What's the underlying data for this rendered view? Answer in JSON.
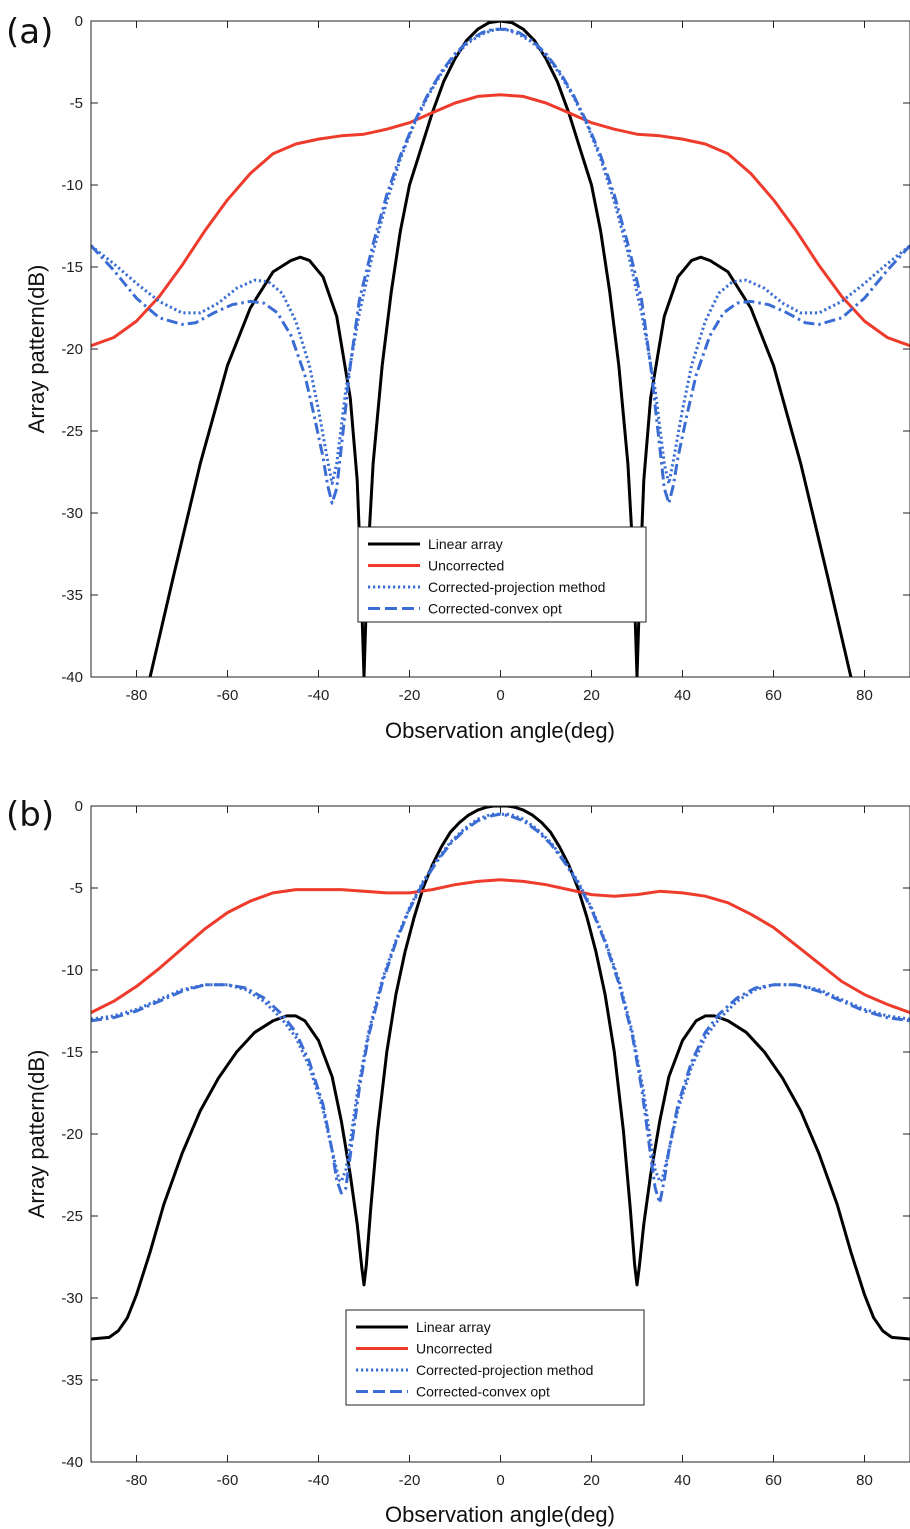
{
  "chart_data": [
    {
      "type": "line",
      "panel_label": "(a)",
      "xlabel": "Observation angle(deg)",
      "ylabel": "Array pattern(dB)",
      "xlim": [
        -90,
        90
      ],
      "ylim": [
        -40,
        0
      ],
      "xticks": [
        -80,
        -60,
        -40,
        -20,
        0,
        20,
        40,
        60,
        80
      ],
      "yticks": [
        0,
        -5,
        -10,
        -15,
        -20,
        -25,
        -30,
        -35,
        -40
      ],
      "grid": false,
      "legend_position": "lower-center",
      "series": [
        {
          "name": "Linear array",
          "color": "#000000",
          "style": "solid",
          "x": [
            -77,
            -72,
            -66,
            -60,
            -55,
            -50,
            -46,
            -44,
            -42,
            -39,
            -36,
            -33,
            -31.5,
            -30.8,
            -30,
            -29.2,
            -28,
            -26,
            -24,
            -22,
            -20,
            -17.5,
            -15,
            -12.5,
            -10,
            -7.5,
            -5,
            -2.5,
            0,
            2.5,
            5,
            7.5,
            10,
            12.5,
            15,
            17.5,
            20,
            22,
            24,
            26,
            28,
            29.2,
            30,
            30.8,
            31.5,
            33,
            36,
            39,
            42,
            44,
            46,
            50,
            55,
            60,
            66,
            72,
            77
          ],
          "y": [
            -40,
            -34,
            -27,
            -21,
            -17.5,
            -15.3,
            -14.6,
            -14.4,
            -14.6,
            -15.6,
            -18,
            -23,
            -28,
            -33,
            -40,
            -33,
            -27,
            -21,
            -16.5,
            -12.8,
            -10,
            -7.8,
            -5.6,
            -3.7,
            -2.3,
            -1.2,
            -0.5,
            -0.1,
            0,
            -0.1,
            -0.5,
            -1.2,
            -2.3,
            -3.7,
            -5.6,
            -7.8,
            -10,
            -12.8,
            -16.5,
            -21,
            -27,
            -33,
            -40,
            -33,
            -28,
            -23,
            -18,
            -15.6,
            -14.6,
            -14.4,
            -14.6,
            -15.3,
            -17.5,
            -21,
            -27,
            -34,
            -40
          ]
        },
        {
          "name": "Uncorrected",
          "color": "#ee3b2b",
          "style": "solid",
          "x": [
            -90,
            -85,
            -80,
            -75,
            -70,
            -65,
            -60,
            -55,
            -50,
            -45,
            -40,
            -35,
            -30,
            -25,
            -20,
            -15,
            -10,
            -5,
            0,
            5,
            10,
            15,
            20,
            25,
            30,
            35,
            40,
            45,
            50,
            55,
            60,
            65,
            70,
            75,
            80,
            85,
            90
          ],
          "y": [
            -19.8,
            -19.3,
            -18.3,
            -16.8,
            -14.9,
            -12.8,
            -10.9,
            -9.3,
            -8.1,
            -7.5,
            -7.2,
            -7.0,
            -6.9,
            -6.6,
            -6.2,
            -5.6,
            -5.0,
            -4.6,
            -4.5,
            -4.6,
            -5.0,
            -5.6,
            -6.2,
            -6.6,
            -6.9,
            -7.0,
            -7.2,
            -7.5,
            -8.1,
            -9.3,
            -10.9,
            -12.8,
            -14.9,
            -16.8,
            -18.3,
            -19.3,
            -19.8
          ]
        },
        {
          "name": "Corrected-projection method",
          "color": "#3a6cd4",
          "style": "dotted",
          "x": [
            -90,
            -85,
            -80,
            -75,
            -70,
            -66,
            -62,
            -58,
            -54,
            -51,
            -48,
            -45,
            -42,
            -40,
            -38,
            -37,
            -36,
            -34,
            -31,
            -28,
            -25,
            -22,
            -19,
            -16,
            -13,
            -10,
            -7,
            -4,
            -1.5,
            0,
            1.5,
            4,
            7,
            10,
            13,
            16,
            19,
            22,
            25,
            28,
            31,
            34,
            36,
            37,
            38,
            40,
            42,
            45,
            48,
            51,
            54,
            58,
            62,
            66,
            70,
            75,
            80,
            85,
            90
          ],
          "y": [
            -13.7,
            -14.8,
            -16,
            -17.1,
            -17.8,
            -17.8,
            -17.2,
            -16.3,
            -15.8,
            -15.9,
            -16.6,
            -18.3,
            -21,
            -23.7,
            -26.8,
            -28.2,
            -27,
            -22.5,
            -17.8,
            -14.1,
            -11,
            -8.4,
            -6.3,
            -4.6,
            -3.2,
            -2.1,
            -1.3,
            -0.8,
            -0.55,
            -0.5,
            -0.55,
            -0.8,
            -1.3,
            -2.1,
            -3.2,
            -4.6,
            -6.3,
            -8.4,
            -11,
            -14.1,
            -17.8,
            -22.5,
            -27,
            -28.2,
            -26.8,
            -23.7,
            -21,
            -18.3,
            -16.6,
            -15.9,
            -15.8,
            -16.3,
            -17.2,
            -17.8,
            -17.8,
            -17.1,
            -16,
            -14.8,
            -13.7
          ]
        },
        {
          "name": "Corrected-convex opt",
          "color": "#3a6cd4",
          "style": "dashdot",
          "x": [
            -90,
            -85,
            -80,
            -75,
            -70,
            -67,
            -63,
            -59,
            -55,
            -52,
            -49,
            -46,
            -43,
            -41,
            -39,
            -38,
            -37,
            -36,
            -35,
            -33,
            -31,
            -28,
            -25,
            -22,
            -19,
            -16,
            -13,
            -10,
            -7,
            -4,
            -1.5,
            0,
            1.5,
            4,
            7,
            10,
            13,
            16,
            19,
            22,
            25,
            28,
            31,
            33,
            35,
            36,
            37,
            38,
            39,
            41,
            43,
            46,
            49,
            52,
            55,
            59,
            63,
            67,
            70,
            75,
            80,
            85,
            90
          ],
          "y": [
            -13.7,
            -15.2,
            -16.9,
            -18.1,
            -18.5,
            -18.4,
            -17.8,
            -17.3,
            -17.1,
            -17.2,
            -17.8,
            -19.2,
            -21.6,
            -24,
            -26.6,
            -28.3,
            -29.4,
            -28.5,
            -26,
            -21,
            -17,
            -13.6,
            -10.6,
            -8.2,
            -6.2,
            -4.5,
            -3.1,
            -2.0,
            -1.2,
            -0.7,
            -0.5,
            -0.5,
            -0.5,
            -0.7,
            -1.2,
            -2.0,
            -3.1,
            -4.5,
            -6.2,
            -8.2,
            -10.6,
            -13.6,
            -17,
            -21,
            -26,
            -28.5,
            -29.4,
            -28.3,
            -26.6,
            -24,
            -21.6,
            -19.2,
            -17.8,
            -17.2,
            -17.1,
            -17.3,
            -17.8,
            -18.4,
            -18.5,
            -18.1,
            -16.9,
            -15.2,
            -13.7
          ]
        }
      ]
    },
    {
      "type": "line",
      "panel_label": "(b)",
      "xlabel": "Observation angle(deg)",
      "ylabel": "Array pattern(dB)",
      "xlim": [
        -90,
        90
      ],
      "ylim": [
        -40,
        0
      ],
      "xticks": [
        -80,
        -60,
        -40,
        -20,
        0,
        20,
        40,
        60,
        80
      ],
      "yticks": [
        0,
        -5,
        -10,
        -15,
        -20,
        -25,
        -30,
        -35,
        -40
      ],
      "grid": false,
      "legend_position": "lower-center",
      "series": [
        {
          "name": "Linear array",
          "color": "#000000",
          "style": "solid",
          "x": [
            -90,
            -86,
            -84,
            -82,
            -80,
            -77,
            -74,
            -70,
            -66,
            -62,
            -58,
            -54,
            -50,
            -47,
            -45,
            -43,
            -40,
            -37,
            -35,
            -33,
            -31.5,
            -30.5,
            -30,
            -29.5,
            -28.5,
            -27,
            -25,
            -23,
            -21,
            -19,
            -17,
            -15,
            -13,
            -11,
            -9,
            -7,
            -5,
            -3,
            -1.5,
            0,
            1.5,
            3,
            5,
            7,
            9,
            11,
            13,
            15,
            17,
            19,
            21,
            23,
            25,
            27,
            28.5,
            29.5,
            30,
            30.5,
            31.5,
            33,
            35,
            37,
            40,
            43,
            45,
            47,
            50,
            54,
            58,
            62,
            66,
            70,
            74,
            77,
            80,
            82,
            84,
            86,
            90
          ],
          "y": [
            -32.5,
            -32.4,
            -32,
            -31.2,
            -29.8,
            -27.2,
            -24.3,
            -21.2,
            -18.6,
            -16.6,
            -15,
            -13.8,
            -13.1,
            -12.8,
            -12.8,
            -13.1,
            -14.3,
            -16.5,
            -19.2,
            -22.5,
            -25.5,
            -28.1,
            -29.2,
            -28,
            -24.5,
            -19.8,
            -15,
            -11.5,
            -8.9,
            -6.8,
            -5,
            -3.6,
            -2.5,
            -1.6,
            -1,
            -0.55,
            -0.25,
            -0.07,
            0,
            0,
            0,
            -0.07,
            -0.25,
            -0.55,
            -1,
            -1.6,
            -2.5,
            -3.6,
            -5,
            -6.8,
            -8.9,
            -11.5,
            -15,
            -19.8,
            -24.5,
            -28,
            -29.2,
            -28.1,
            -25.5,
            -22.5,
            -19.2,
            -16.5,
            -14.3,
            -13.1,
            -12.8,
            -12.8,
            -13.1,
            -13.8,
            -15,
            -16.6,
            -18.6,
            -21.2,
            -24.3,
            -27.2,
            -29.8,
            -31.2,
            -32,
            -32.4,
            -32.5
          ]
        },
        {
          "name": "Uncorrected",
          "color": "#ee3b2b",
          "style": "solid",
          "x": [
            -90,
            -85,
            -80,
            -75,
            -70,
            -65,
            -60,
            -55,
            -50,
            -45,
            -40,
            -35,
            -30,
            -25,
            -20,
            -15,
            -10,
            -5,
            0,
            5,
            10,
            15,
            20,
            25,
            30,
            35,
            40,
            45,
            50,
            55,
            60,
            65,
            70,
            75,
            80,
            85,
            90
          ],
          "y": [
            -12.6,
            -11.9,
            -11,
            -9.9,
            -8.7,
            -7.5,
            -6.5,
            -5.8,
            -5.3,
            -5.1,
            -5.1,
            -5.1,
            -5.2,
            -5.3,
            -5.3,
            -5.1,
            -4.8,
            -4.6,
            -4.5,
            -4.6,
            -4.8,
            -5.1,
            -5.4,
            -5.5,
            -5.4,
            -5.2,
            -5.3,
            -5.5,
            -5.9,
            -6.6,
            -7.4,
            -8.5,
            -9.6,
            -10.7,
            -11.5,
            -12.1,
            -12.6
          ]
        },
        {
          "name": "Corrected-projection method",
          "color": "#3a6cd4",
          "style": "dotted",
          "x": [
            -90,
            -85,
            -80,
            -75,
            -70,
            -65,
            -60,
            -56,
            -52,
            -48,
            -45,
            -42,
            -39,
            -37,
            -35.5,
            -35,
            -34,
            -33,
            -31.5,
            -29,
            -26,
            -23,
            -20,
            -17,
            -14,
            -11,
            -8,
            -5,
            -2,
            0,
            2,
            5,
            8,
            11,
            14,
            17,
            20,
            23,
            26,
            29,
            31.5,
            33,
            34,
            35,
            35.5,
            37,
            39,
            42,
            45,
            48,
            52,
            56,
            60,
            65,
            70,
            75,
            80,
            85,
            90
          ],
          "y": [
            -13,
            -12.8,
            -12.4,
            -11.8,
            -11.2,
            -10.9,
            -10.9,
            -11.2,
            -11.9,
            -13,
            -14.1,
            -15.9,
            -18.5,
            -21,
            -22.8,
            -22.9,
            -22.2,
            -20.5,
            -17.5,
            -13.8,
            -10.6,
            -8.2,
            -6.2,
            -4.6,
            -3.3,
            -2.2,
            -1.4,
            -0.8,
            -0.5,
            -0.5,
            -0.5,
            -0.8,
            -1.4,
            -2.2,
            -3.3,
            -4.6,
            -6.2,
            -8.2,
            -10.6,
            -13.8,
            -17.5,
            -20.5,
            -22.2,
            -22.9,
            -22.8,
            -21,
            -18.5,
            -15.9,
            -14.1,
            -13,
            -11.9,
            -11.2,
            -10.9,
            -10.9,
            -11.2,
            -11.8,
            -12.4,
            -12.8,
            -13
          ]
        },
        {
          "name": "Corrected-convex opt",
          "color": "#3a6cd4",
          "style": "dashdot",
          "x": [
            -90,
            -85,
            -80,
            -75,
            -70,
            -65,
            -60,
            -56,
            -52,
            -48,
            -45,
            -42,
            -39,
            -37,
            -36,
            -35,
            -34,
            -33,
            -32,
            -31,
            -29,
            -26,
            -23,
            -20,
            -17,
            -14,
            -11,
            -8,
            -5,
            -2,
            0,
            2,
            5,
            8,
            11,
            14,
            17,
            20,
            23,
            26,
            29,
            31,
            32,
            33,
            34,
            35,
            36,
            37,
            39,
            42,
            45,
            48,
            52,
            56,
            60,
            65,
            70,
            75,
            80,
            85,
            90
          ],
          "y": [
            -13.1,
            -12.9,
            -12.5,
            -11.9,
            -11.3,
            -10.9,
            -10.9,
            -11.1,
            -11.7,
            -12.7,
            -13.8,
            -15.6,
            -18.2,
            -21,
            -22.8,
            -23.6,
            -23.3,
            -21.3,
            -19.2,
            -17.2,
            -14,
            -10.8,
            -8.3,
            -6.3,
            -4.7,
            -3.4,
            -2.3,
            -1.5,
            -0.9,
            -0.6,
            -0.5,
            -0.6,
            -0.9,
            -1.5,
            -2.3,
            -3.4,
            -4.7,
            -6.3,
            -8.3,
            -10.8,
            -14,
            -17.2,
            -19.2,
            -21.3,
            -23.3,
            -24.2,
            -22.8,
            -21,
            -18.2,
            -15.6,
            -13.8,
            -12.7,
            -11.7,
            -11.1,
            -10.9,
            -10.9,
            -11.3,
            -11.9,
            -12.5,
            -12.9,
            -13.1
          ]
        }
      ]
    }
  ]
}
